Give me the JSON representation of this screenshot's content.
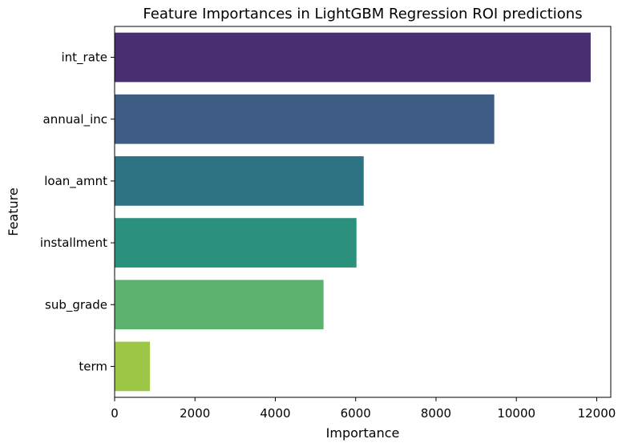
{
  "chart_data": {
    "type": "bar",
    "orientation": "horizontal",
    "title": "Feature Importances in LightGBM Regression ROI predictions",
    "xlabel": "Importance",
    "ylabel": "Feature",
    "categories": [
      "int_rate",
      "annual_inc",
      "loan_amnt",
      "installment",
      "sub_grade",
      "term"
    ],
    "values": [
      11850,
      9450,
      6200,
      6020,
      5200,
      880
    ],
    "colors": [
      "#482f71",
      "#3e5c84",
      "#2e7384",
      "#2c917c",
      "#5ab26e",
      "#9dc646"
    ],
    "xlim": [
      0,
      12350
    ],
    "xticks": [
      0,
      2000,
      4000,
      6000,
      8000,
      10000,
      12000
    ],
    "xtick_labels": [
      "0",
      "2000",
      "4000",
      "6000",
      "8000",
      "10000",
      "12000"
    ],
    "grid": false,
    "legend": false
  }
}
